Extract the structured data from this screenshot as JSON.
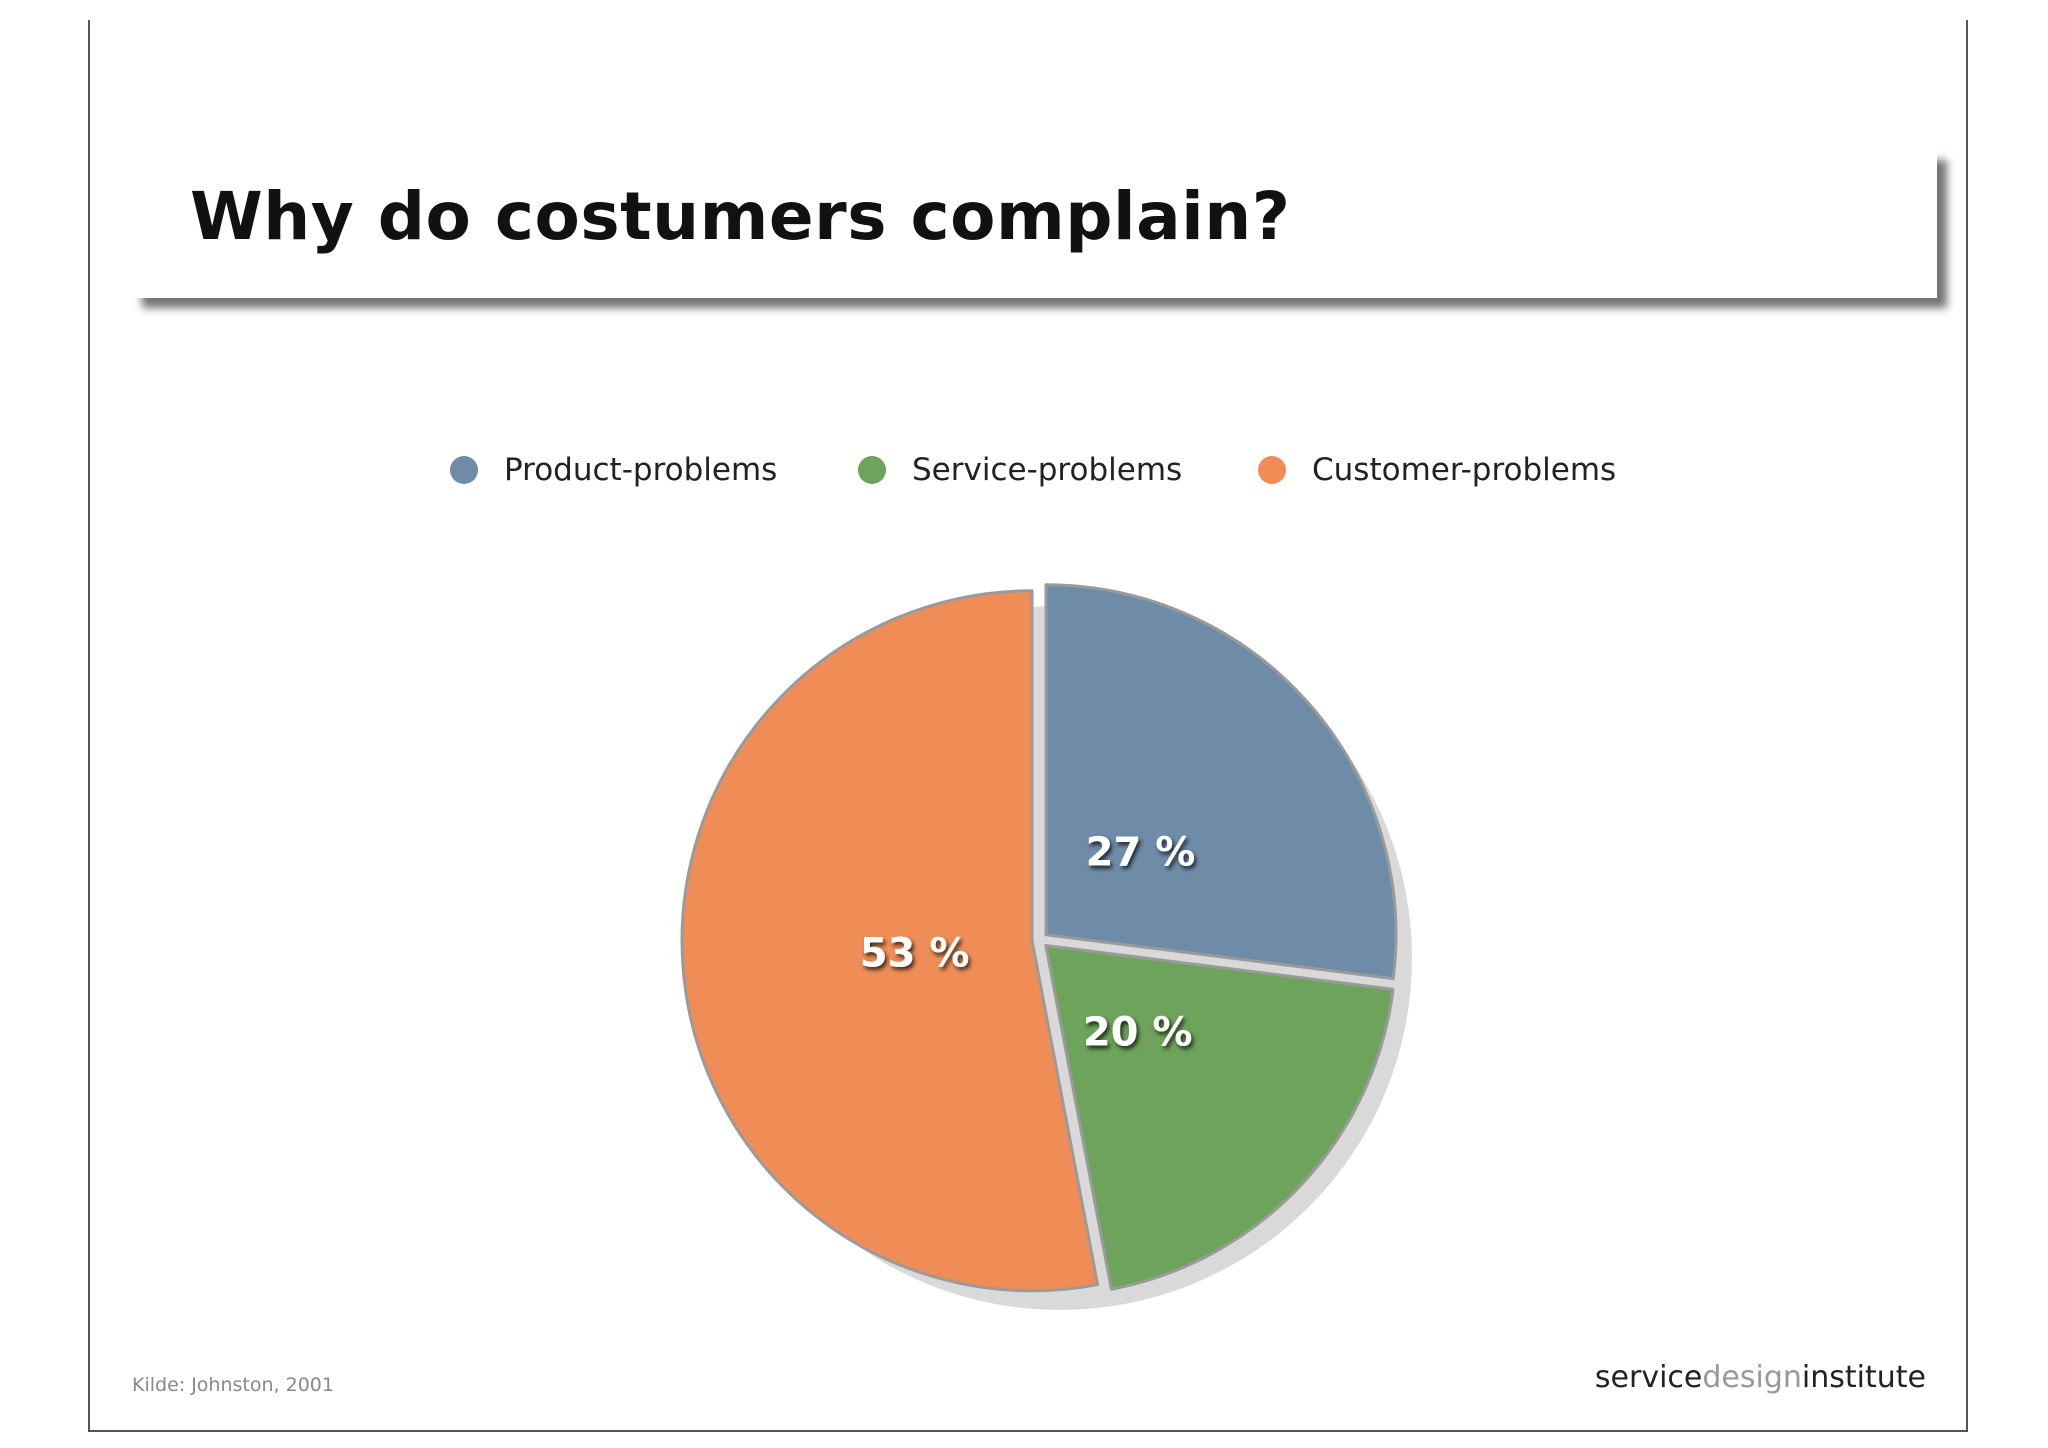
{
  "title": "Why do costumers complain?",
  "source": "Kilde: Johnston, 2001",
  "logo": {
    "part1": "service",
    "part2": "design",
    "part3": "institute"
  },
  "colors": {
    "product": "#6e8ca8",
    "service": "#6da35a",
    "customer": "#f08d57"
  },
  "chart_data": {
    "type": "pie",
    "title": "Why do costumers complain?",
    "legend_position": "top",
    "slices": [
      {
        "name": "Product-problems",
        "value": 27,
        "label": "27 %",
        "color": "#6e8ca8"
      },
      {
        "name": "Service-problems",
        "value": 20,
        "label": "20 %",
        "color": "#6da35a"
      },
      {
        "name": "Customer-problems",
        "value": 53,
        "label": "53 %",
        "color": "#f08d57"
      }
    ]
  }
}
